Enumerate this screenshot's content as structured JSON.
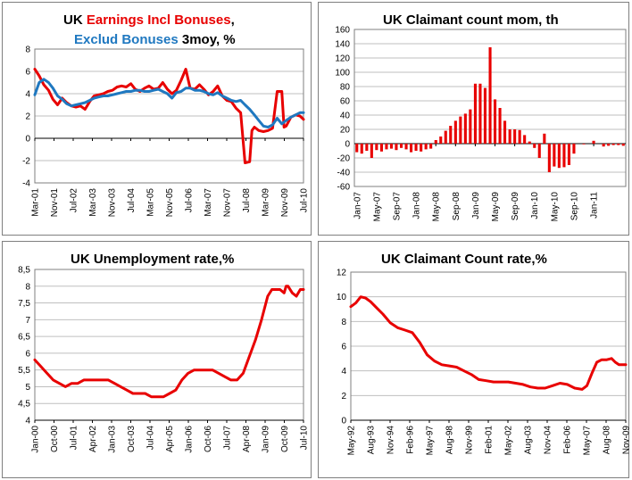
{
  "colors": {
    "red": "#e80000",
    "blue": "#1f78c0",
    "grid": "#bfbfbf",
    "axis": "#7f7f7f"
  },
  "chart_data": [
    {
      "id": "earnings",
      "type": "line",
      "title_parts": [
        "UK ",
        "Earnings Incl Bonuses",
        ","
      ],
      "title2_parts": [
        "Exclud Bonuses",
        " 3moy, %"
      ],
      "xlabel": "",
      "ylabel": "",
      "ylim": [
        -4,
        8
      ],
      "yticks": [
        "-4",
        "-2",
        "0",
        "2",
        "4",
        "6",
        "8"
      ],
      "xlim": [
        2001.17,
        2010.96
      ],
      "xticks": [
        "Mar-01",
        "Nov-01",
        "Jul-02",
        "Mar-03",
        "Nov-03",
        "Jul-04",
        "Mar-05",
        "Nov-05",
        "Jul-06",
        "Mar-07",
        "Nov-07",
        "Jul-08",
        "Mar-09",
        "Nov-09",
        "Jul-10"
      ],
      "series": [
        {
          "name": "Earnings Incl Bonuses",
          "color": "red",
          "x": [
            2001.17,
            2001.33,
            2001.5,
            2001.67,
            2001.83,
            2002.0,
            2002.17,
            2002.33,
            2002.5,
            2002.67,
            2002.83,
            2003.0,
            2003.17,
            2003.33,
            2003.5,
            2003.67,
            2003.83,
            2004.0,
            2004.17,
            2004.33,
            2004.5,
            2004.67,
            2004.83,
            2005.0,
            2005.17,
            2005.33,
            2005.5,
            2005.67,
            2005.83,
            2006.0,
            2006.17,
            2006.33,
            2006.5,
            2006.67,
            2006.83,
            2007.0,
            2007.17,
            2007.33,
            2007.5,
            2007.67,
            2007.83,
            2008.0,
            2008.17,
            2008.33,
            2008.5,
            2008.67,
            2008.83,
            2009.0,
            2009.08,
            2009.17,
            2009.33,
            2009.5,
            2009.67,
            2009.83,
            2010.0,
            2010.17,
            2010.25,
            2010.33,
            2010.5,
            2010.67,
            2010.83,
            2010.96
          ],
          "y": [
            6.2,
            5.6,
            4.8,
            4.3,
            3.5,
            3.0,
            3.6,
            3.2,
            2.9,
            2.8,
            2.9,
            2.6,
            3.3,
            3.8,
            3.9,
            4.0,
            4.2,
            4.3,
            4.6,
            4.7,
            4.6,
            4.9,
            4.4,
            4.2,
            4.5,
            4.7,
            4.4,
            4.5,
            5.0,
            4.4,
            4.0,
            4.3,
            5.2,
            6.2,
            4.5,
            4.4,
            4.8,
            4.4,
            3.9,
            4.2,
            4.7,
            3.8,
            3.4,
            3.3,
            2.7,
            2.3,
            -2.2,
            -2.1,
            0.7,
            1.0,
            0.7,
            0.6,
            0.7,
            0.9,
            4.2,
            4.2,
            1.0,
            1.1,
            1.9,
            2.1,
            2.0,
            1.7
          ]
        },
        {
          "name": "Exclud Bonuses",
          "color": "blue",
          "x": [
            2001.17,
            2001.33,
            2001.5,
            2001.67,
            2001.83,
            2002.0,
            2002.17,
            2002.33,
            2002.5,
            2002.67,
            2002.83,
            2003.0,
            2003.17,
            2003.33,
            2003.5,
            2003.67,
            2003.83,
            2004.0,
            2004.17,
            2004.33,
            2004.5,
            2004.67,
            2004.83,
            2005.0,
            2005.17,
            2005.33,
            2005.5,
            2005.67,
            2005.83,
            2006.0,
            2006.17,
            2006.33,
            2006.5,
            2006.67,
            2006.83,
            2007.0,
            2007.17,
            2007.33,
            2007.5,
            2007.67,
            2007.83,
            2008.0,
            2008.17,
            2008.33,
            2008.5,
            2008.67,
            2008.83,
            2009.0,
            2009.17,
            2009.33,
            2009.5,
            2009.67,
            2009.83,
            2010.0,
            2010.17,
            2010.33,
            2010.5,
            2010.67,
            2010.83,
            2010.96
          ],
          "y": [
            3.9,
            5.0,
            5.3,
            5.0,
            4.5,
            3.8,
            3.5,
            3.1,
            2.9,
            3.0,
            3.1,
            3.2,
            3.4,
            3.6,
            3.7,
            3.8,
            3.8,
            3.9,
            4.0,
            4.1,
            4.2,
            4.2,
            4.3,
            4.3,
            4.2,
            4.2,
            4.3,
            4.4,
            4.2,
            4.0,
            3.6,
            4.1,
            4.2,
            4.5,
            4.5,
            4.3,
            4.3,
            4.2,
            4.0,
            3.9,
            4.1,
            3.8,
            3.6,
            3.4,
            3.3,
            3.4,
            3.0,
            2.6,
            2.1,
            1.6,
            1.1,
            1.0,
            1.2,
            1.8,
            1.3,
            1.6,
            1.9,
            2.1,
            2.3,
            2.3
          ]
        }
      ]
    },
    {
      "id": "claimant_mom",
      "type": "bar",
      "title": "UK Claimant count mom, th",
      "ylim": [
        -60,
        160
      ],
      "yticks": [
        "-60",
        "-40",
        "-20",
        "0",
        "20",
        "40",
        "60",
        "80",
        "100",
        "120",
        "140",
        "160"
      ],
      "xticks": [
        "Jan-07",
        "May-07",
        "Sep-07",
        "Jan-08",
        "May-08",
        "Sep-08",
        "Jan-09",
        "May-09",
        "Sep-09",
        "Jan-10",
        "May-10",
        "Sep-10",
        "Jan-11"
      ],
      "series": [
        {
          "name": "Claimant count mom",
          "color": "red",
          "values": [
            -12,
            -14,
            -10,
            -20,
            -9,
            -11,
            -8,
            -7,
            -9,
            -6,
            -8,
            -12,
            -10,
            -11,
            -8,
            -7,
            5,
            10,
            18,
            25,
            32,
            38,
            42,
            48,
            84,
            84,
            78,
            135,
            62,
            50,
            32,
            20,
            20,
            19,
            12,
            3,
            -6,
            -20,
            14,
            -40,
            -32,
            -34,
            -33,
            -30,
            -14,
            0,
            -1,
            0,
            4,
            0,
            -4,
            -3,
            -2,
            -2,
            -3
          ]
        }
      ]
    },
    {
      "id": "unemployment",
      "type": "line",
      "title": "UK Unemployment rate,%",
      "ylim": [
        4,
        8.5
      ],
      "yticks": [
        "4",
        "4,5",
        "5",
        "5,5",
        "6",
        "6,5",
        "7",
        "7,5",
        "8",
        "8,5"
      ],
      "xlim": [
        2000.0,
        2010.96
      ],
      "xticks": [
        "Jan-00",
        "Oct-00",
        "Jul-01",
        "Apr-02",
        "Jan-03",
        "Oct-03",
        "Jul-04",
        "Apr-05",
        "Jan-06",
        "Oct-06",
        "Jul-07",
        "Apr-08",
        "Jan-09",
        "Oct-09",
        "Jul-10"
      ],
      "series": [
        {
          "name": "Unemployment rate",
          "color": "red",
          "x": [
            2000.0,
            2000.25,
            2000.5,
            2000.75,
            2001.0,
            2001.25,
            2001.5,
            2001.75,
            2002.0,
            2002.5,
            2003.0,
            2003.25,
            2003.5,
            2003.75,
            2004.0,
            2004.25,
            2004.5,
            2004.75,
            2005.0,
            2005.25,
            2005.5,
            2005.75,
            2006.0,
            2006.25,
            2006.5,
            2006.75,
            2007.0,
            2007.25,
            2007.5,
            2007.75,
            2008.0,
            2008.25,
            2008.5,
            2008.75,
            2009.0,
            2009.25,
            2009.5,
            2009.67,
            2009.83,
            2010.0,
            2010.17,
            2010.25,
            2010.33,
            2010.5,
            2010.67,
            2010.83,
            2010.96
          ],
          "y": [
            5.8,
            5.6,
            5.4,
            5.2,
            5.1,
            5.0,
            5.1,
            5.1,
            5.2,
            5.2,
            5.2,
            5.1,
            5.0,
            4.9,
            4.8,
            4.8,
            4.8,
            4.7,
            4.7,
            4.7,
            4.8,
            4.9,
            5.2,
            5.4,
            5.5,
            5.5,
            5.5,
            5.5,
            5.4,
            5.3,
            5.2,
            5.2,
            5.4,
            5.9,
            6.4,
            7.0,
            7.7,
            7.9,
            7.9,
            7.9,
            7.8,
            8.0,
            8.0,
            7.8,
            7.7,
            7.9,
            7.9
          ]
        }
      ]
    },
    {
      "id": "claimant_rate",
      "type": "line",
      "title": "UK Claimant Count rate,%",
      "ylim": [
        0,
        12
      ],
      "yticks": [
        "0",
        "2",
        "4",
        "6",
        "8",
        "10",
        "12"
      ],
      "xlim": [
        1992.33,
        2010.96
      ],
      "xticks": [
        "May-92",
        "Aug-93",
        "Nov-94",
        "Feb-96",
        "May-97",
        "Aug-98",
        "Nov-99",
        "Feb-01",
        "May-02",
        "Aug-03",
        "Nov-04",
        "Feb-06",
        "May-07",
        "Aug-08",
        "Nov-09"
      ],
      "series": [
        {
          "name": "Claimant Count rate",
          "color": "red",
          "x": [
            1992.33,
            1992.67,
            1993.0,
            1993.33,
            1993.67,
            1994.0,
            1994.5,
            1995.0,
            1995.5,
            1996.0,
            1996.5,
            1997.0,
            1997.5,
            1998.0,
            1998.5,
            1999.0,
            1999.5,
            2000.0,
            2000.5,
            2001.0,
            2001.5,
            2002.0,
            2002.5,
            2003.0,
            2003.5,
            2004.0,
            2004.5,
            2005.0,
            2005.5,
            2006.0,
            2006.5,
            2007.0,
            2007.5,
            2008.0,
            2008.33,
            2008.67,
            2009.0,
            2009.33,
            2009.67,
            2010.0,
            2010.25,
            2010.5,
            2010.75,
            2010.96
          ],
          "y": [
            9.2,
            9.5,
            10.0,
            9.9,
            9.6,
            9.2,
            8.6,
            7.9,
            7.5,
            7.3,
            7.1,
            6.3,
            5.3,
            4.8,
            4.5,
            4.4,
            4.3,
            4.0,
            3.7,
            3.3,
            3.2,
            3.1,
            3.1,
            3.1,
            3.0,
            2.9,
            2.7,
            2.6,
            2.6,
            2.8,
            3.0,
            2.9,
            2.6,
            2.5,
            2.8,
            3.8,
            4.7,
            4.9,
            4.9,
            5.0,
            4.7,
            4.5,
            4.5,
            4.5
          ]
        }
      ]
    }
  ]
}
